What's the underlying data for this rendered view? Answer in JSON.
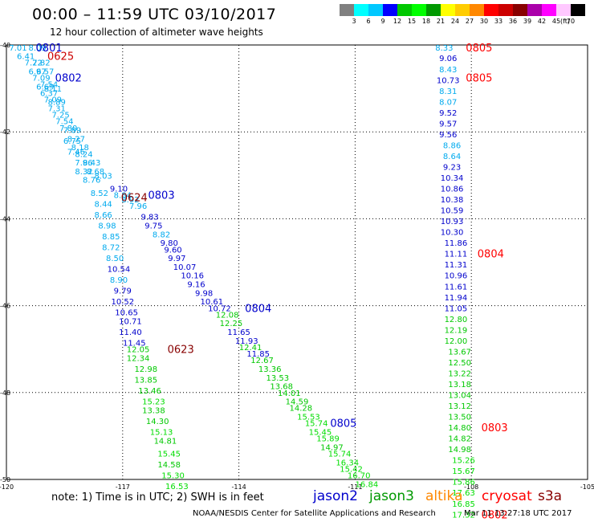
{
  "header": {
    "title": "00:00 – 11:59 UTC 03/10/2017",
    "subtitle": "12 hour collection of altimeter wave heights"
  },
  "colorbar": {
    "colors": [
      "#808080",
      "#00ffff",
      "#00c8ff",
      "#0000ff",
      "#00c800",
      "#00ff00",
      "#009900",
      "#ffff00",
      "#ffcc00",
      "#ff8800",
      "#ff0000",
      "#cc0000",
      "#880000",
      "#aa00aa",
      "#ff00ff",
      "#ffc8ff",
      "#000000"
    ],
    "labels": [
      "3",
      "6",
      "9",
      "12",
      "15",
      "18",
      "21",
      "24",
      "27",
      "30",
      "33",
      "36",
      "39",
      "42",
      "45",
      "70"
    ],
    "unit": "(ft)"
  },
  "chart_data": {
    "type": "scatter",
    "title": "00:00 – 11:59 UTC 03/10/2017",
    "subtitle": "12 hour collection of altimeter wave heights",
    "xlim": [
      -120,
      -105
    ],
    "ylim": [
      -50,
      -40
    ],
    "grid": true,
    "x_ticks": [
      "-120",
      "-117",
      "-114",
      "-111",
      "-108",
      "-105"
    ],
    "y_ticks": [
      "-40",
      "-42",
      "-44",
      "-46",
      "-48",
      "-50"
    ],
    "color_scale": [
      {
        "max": 3,
        "color": "#808080"
      },
      {
        "max": 6,
        "color": "#00ffff"
      },
      {
        "max": 9,
        "color": "#00aaee"
      },
      {
        "max": 12,
        "color": "#0000cc"
      },
      {
        "max": 15,
        "color": "#00c800"
      },
      {
        "max": 18,
        "color": "#00dd00"
      },
      {
        "max": 21,
        "color": "#009900"
      },
      {
        "max": 99,
        "color": "#ffcc00"
      }
    ],
    "points": [
      {
        "x": -119.7,
        "y": -40.06,
        "v": 7.01
      },
      {
        "x": -119.2,
        "y": -40.06,
        "v": 8.09
      },
      {
        "x": -119.5,
        "y": -40.25,
        "v": 6.41
      },
      {
        "x": -119.3,
        "y": -40.4,
        "v": 7.22
      },
      {
        "x": -119.1,
        "y": -40.4,
        "v": 7.82
      },
      {
        "x": -119.2,
        "y": -40.6,
        "v": 6.97
      },
      {
        "x": -119.0,
        "y": -40.6,
        "v": 6.57
      },
      {
        "x": -119.1,
        "y": -40.75,
        "v": 7.09
      },
      {
        "x": -118.9,
        "y": -40.9,
        "v": 7.54
      },
      {
        "x": -119.0,
        "y": -40.95,
        "v": 6.69
      },
      {
        "x": -118.8,
        "y": -41.0,
        "v": 8.11
      },
      {
        "x": -118.9,
        "y": -41.1,
        "v": 6.37
      },
      {
        "x": -118.8,
        "y": -41.25,
        "v": 7.09
      },
      {
        "x": -118.7,
        "y": -41.3,
        "v": 8.89
      },
      {
        "x": -118.7,
        "y": -41.45,
        "v": 7.31
      },
      {
        "x": -118.6,
        "y": -41.6,
        "v": 7.25
      },
      {
        "x": -118.5,
        "y": -41.75,
        "v": 7.54
      },
      {
        "x": -118.4,
        "y": -41.9,
        "v": 7.8
      },
      {
        "x": -118.3,
        "y": -41.95,
        "v": 7.89
      },
      {
        "x": -118.3,
        "y": -42.2,
        "v": 6.75
      },
      {
        "x": -118.2,
        "y": -42.15,
        "v": 8.27
      },
      {
        "x": -118.1,
        "y": -42.35,
        "v": 8.18
      },
      {
        "x": -118.2,
        "y": -42.45,
        "v": 7.46
      },
      {
        "x": -118.0,
        "y": -42.5,
        "v": 8.24
      },
      {
        "x": -118.0,
        "y": -42.7,
        "v": 7.96
      },
      {
        "x": -117.8,
        "y": -42.7,
        "v": 8.43
      },
      {
        "x": -118.0,
        "y": -42.9,
        "v": 8.32
      },
      {
        "x": -117.7,
        "y": -42.9,
        "v": 8.68
      },
      {
        "x": -117.8,
        "y": -43.1,
        "v": 8.76
      },
      {
        "x": -117.5,
        "y": -43.0,
        "v": 8.03
      },
      {
        "x": -117.1,
        "y": -43.3,
        "v": 9.1
      },
      {
        "x": -117.6,
        "y": -43.4,
        "v": 8.52
      },
      {
        "x": -117.0,
        "y": -43.45,
        "v": 8.84
      },
      {
        "x": -116.8,
        "y": -43.55,
        "v": 8.92
      },
      {
        "x": -117.5,
        "y": -43.65,
        "v": 8.44
      },
      {
        "x": -116.6,
        "y": -43.7,
        "v": 7.96
      },
      {
        "x": -117.5,
        "y": -43.9,
        "v": 8.66
      },
      {
        "x": -116.3,
        "y": -43.95,
        "v": 9.83
      },
      {
        "x": -117.4,
        "y": -44.15,
        "v": 8.98
      },
      {
        "x": -116.2,
        "y": -44.15,
        "v": 9.75
      },
      {
        "x": -116.0,
        "y": -44.35,
        "v": 8.82
      },
      {
        "x": -117.3,
        "y": -44.4,
        "v": 8.85
      },
      {
        "x": -115.8,
        "y": -44.55,
        "v": 9.8
      },
      {
        "x": -117.3,
        "y": -44.65,
        "v": 8.72
      },
      {
        "x": -115.7,
        "y": -44.7,
        "v": 9.6
      },
      {
        "x": -117.2,
        "y": -44.9,
        "v": 8.5
      },
      {
        "x": -115.6,
        "y": -44.9,
        "v": 9.97
      },
      {
        "x": -115.4,
        "y": -45.1,
        "v": 10.07
      },
      {
        "x": -117.1,
        "y": -45.15,
        "v": 10.54
      },
      {
        "x": -115.2,
        "y": -45.3,
        "v": 10.16
      },
      {
        "x": -117.1,
        "y": -45.4,
        "v": 8.9
      },
      {
        "x": -115.1,
        "y": -45.5,
        "v": 9.16
      },
      {
        "x": -117.0,
        "y": -45.65,
        "v": 9.79
      },
      {
        "x": -114.9,
        "y": -45.7,
        "v": 9.98
      },
      {
        "x": -117.0,
        "y": -45.9,
        "v": 10.52
      },
      {
        "x": -114.7,
        "y": -45.9,
        "v": 10.61
      },
      {
        "x": -114.5,
        "y": -46.05,
        "v": 10.72
      },
      {
        "x": -116.9,
        "y": -46.15,
        "v": 10.65
      },
      {
        "x": -114.3,
        "y": -46.2,
        "v": 12.08
      },
      {
        "x": -116.8,
        "y": -46.35,
        "v": 10.71
      },
      {
        "x": -114.2,
        "y": -46.4,
        "v": 12.25
      },
      {
        "x": -116.8,
        "y": -46.6,
        "v": 11.4
      },
      {
        "x": -114.0,
        "y": -46.6,
        "v": 11.65
      },
      {
        "x": -113.8,
        "y": -46.8,
        "v": 11.93
      },
      {
        "x": -116.7,
        "y": -46.85,
        "v": 11.45
      },
      {
        "x": -113.7,
        "y": -46.95,
        "v": 12.41
      },
      {
        "x": -116.6,
        "y": -47.0,
        "v": 12.05
      },
      {
        "x": -113.5,
        "y": -47.1,
        "v": 11.85
      },
      {
        "x": -116.6,
        "y": -47.2,
        "v": 12.34
      },
      {
        "x": -113.4,
        "y": -47.25,
        "v": 12.67
      },
      {
        "x": -113.2,
        "y": -47.45,
        "v": 13.36
      },
      {
        "x": -116.4,
        "y": -47.45,
        "v": 12.98
      },
      {
        "x": -113.0,
        "y": -47.65,
        "v": 13.53
      },
      {
        "x": -116.4,
        "y": -47.7,
        "v": 13.85
      },
      {
        "x": -112.9,
        "y": -47.85,
        "v": 13.68
      },
      {
        "x": -116.3,
        "y": -47.95,
        "v": 13.46
      },
      {
        "x": -112.7,
        "y": -48.0,
        "v": 14.01
      },
      {
        "x": -116.2,
        "y": -48.2,
        "v": 15.23
      },
      {
        "x": -112.5,
        "y": -48.2,
        "v": 14.59
      },
      {
        "x": -112.4,
        "y": -48.35,
        "v": 14.28
      },
      {
        "x": -116.2,
        "y": -48.4,
        "v": 13.38
      },
      {
        "x": -112.2,
        "y": -48.55,
        "v": 15.53
      },
      {
        "x": -116.1,
        "y": -48.65,
        "v": 14.3
      },
      {
        "x": -112.0,
        "y": -48.7,
        "v": 15.74
      },
      {
        "x": -111.9,
        "y": -48.9,
        "v": 15.45
      },
      {
        "x": -116.0,
        "y": -48.9,
        "v": 15.13
      },
      {
        "x": -111.7,
        "y": -49.05,
        "v": 15.89
      },
      {
        "x": -115.9,
        "y": -49.1,
        "v": 14.81
      },
      {
        "x": -111.6,
        "y": -49.25,
        "v": 14.97
      },
      {
        "x": -115.8,
        "y": -49.4,
        "v": 15.45
      },
      {
        "x": -111.4,
        "y": -49.4,
        "v": 15.74
      },
      {
        "x": -111.2,
        "y": -49.6,
        "v": 16.34
      },
      {
        "x": -115.8,
        "y": -49.65,
        "v": 14.58
      },
      {
        "x": -111.1,
        "y": -49.75,
        "v": 15.42
      },
      {
        "x": -115.7,
        "y": -49.9,
        "v": 15.3
      },
      {
        "x": -110.9,
        "y": -49.9,
        "v": 16.7
      },
      {
        "x": -110.7,
        "y": -50.1,
        "v": 16.84
      },
      {
        "x": -115.6,
        "y": -50.15,
        "v": 16.53
      },
      {
        "x": -108.7,
        "y": -40.06,
        "v": 8.33
      },
      {
        "x": -108.6,
        "y": -40.3,
        "v": 9.06
      },
      {
        "x": -108.6,
        "y": -40.55,
        "v": 8.43
      },
      {
        "x": -108.6,
        "y": -40.8,
        "v": 10.73
      },
      {
        "x": -108.6,
        "y": -41.05,
        "v": 8.31
      },
      {
        "x": -108.6,
        "y": -41.3,
        "v": 8.07
      },
      {
        "x": -108.6,
        "y": -41.55,
        "v": 9.52
      },
      {
        "x": -108.6,
        "y": -41.8,
        "v": 9.57
      },
      {
        "x": -108.6,
        "y": -42.05,
        "v": 9.56
      },
      {
        "x": -108.5,
        "y": -42.3,
        "v": 8.86
      },
      {
        "x": -108.5,
        "y": -42.55,
        "v": 8.64
      },
      {
        "x": -108.5,
        "y": -42.8,
        "v": 9.23
      },
      {
        "x": -108.5,
        "y": -43.05,
        "v": 10.34
      },
      {
        "x": -108.5,
        "y": -43.3,
        "v": 10.86
      },
      {
        "x": -108.5,
        "y": -43.55,
        "v": 10.38
      },
      {
        "x": -108.5,
        "y": -43.8,
        "v": 10.59
      },
      {
        "x": -108.5,
        "y": -44.05,
        "v": 10.93
      },
      {
        "x": -108.5,
        "y": -44.3,
        "v": 10.3
      },
      {
        "x": -108.4,
        "y": -44.55,
        "v": 11.86
      },
      {
        "x": -108.4,
        "y": -44.8,
        "v": 11.11
      },
      {
        "x": -108.4,
        "y": -45.05,
        "v": 11.31
      },
      {
        "x": -108.4,
        "y": -45.3,
        "v": 10.96
      },
      {
        "x": -108.4,
        "y": -45.55,
        "v": 11.61
      },
      {
        "x": -108.4,
        "y": -45.8,
        "v": 11.94
      },
      {
        "x": -108.4,
        "y": -46.05,
        "v": 11.05
      },
      {
        "x": -108.4,
        "y": -46.3,
        "v": 12.8
      },
      {
        "x": -108.4,
        "y": -46.55,
        "v": 12.19
      },
      {
        "x": -108.4,
        "y": -46.8,
        "v": 12.0
      },
      {
        "x": -108.3,
        "y": -47.05,
        "v": 13.67
      },
      {
        "x": -108.3,
        "y": -47.3,
        "v": 12.5
      },
      {
        "x": -108.3,
        "y": -47.55,
        "v": 13.22
      },
      {
        "x": -108.3,
        "y": -47.8,
        "v": 13.18
      },
      {
        "x": -108.3,
        "y": -48.05,
        "v": 13.04
      },
      {
        "x": -108.3,
        "y": -48.3,
        "v": 13.12
      },
      {
        "x": -108.3,
        "y": -48.55,
        "v": 13.5
      },
      {
        "x": -108.3,
        "y": -48.8,
        "v": 14.8
      },
      {
        "x": -108.3,
        "y": -49.05,
        "v": 14.82
      },
      {
        "x": -108.3,
        "y": -49.3,
        "v": 14.98
      },
      {
        "x": -108.2,
        "y": -49.55,
        "v": 15.26
      },
      {
        "x": -108.2,
        "y": -49.8,
        "v": 15.67
      },
      {
        "x": -108.2,
        "y": -50.05,
        "v": 15.86
      },
      {
        "x": -108.2,
        "y": -50.3,
        "v": 17.63
      },
      {
        "x": -108.2,
        "y": -50.55,
        "v": 16.85
      },
      {
        "x": -108.2,
        "y": -50.8,
        "v": 17.32
      }
    ],
    "time_labels": [
      {
        "x": -118.9,
        "y": -40.06,
        "text": "0801",
        "color": "#0000cc"
      },
      {
        "x": -118.6,
        "y": -40.25,
        "text": "0625",
        "color": "#cc0000"
      },
      {
        "x": -118.4,
        "y": -40.75,
        "text": "0802",
        "color": "#0000cc"
      },
      {
        "x": -116.7,
        "y": -43.5,
        "text": "0624",
        "color": "#880000"
      },
      {
        "x": -116.0,
        "y": -43.45,
        "text": "0803",
        "color": "#0000cc"
      },
      {
        "x": -113.5,
        "y": -46.05,
        "text": "0804",
        "color": "#0000cc"
      },
      {
        "x": -115.5,
        "y": -47.0,
        "text": "0623",
        "color": "#880000"
      },
      {
        "x": -111.3,
        "y": -48.7,
        "text": "0805",
        "color": "#0000cc"
      },
      {
        "x": -107.8,
        "y": -40.06,
        "text": "0805",
        "color": "#ff0000"
      },
      {
        "x": -107.8,
        "y": -40.75,
        "text": "0805",
        "color": "#ff0000"
      },
      {
        "x": -107.5,
        "y": -44.8,
        "text": "0804",
        "color": "#ff0000"
      },
      {
        "x": -107.4,
        "y": -48.8,
        "text": "0803",
        "color": "#ff0000"
      },
      {
        "x": -107.4,
        "y": -50.8,
        "text": "0802",
        "color": "#ff0000"
      }
    ]
  },
  "footer": {
    "note": "note: 1) Time is in UTC; 2) SWH is in feet",
    "satellites": [
      {
        "name": "jason2",
        "color": "#0000cc"
      },
      {
        "name": "jason3",
        "color": "#009900"
      },
      {
        "name": "altika",
        "color": "#ff8800"
      },
      {
        "name": "cryosat",
        "color": "#ff0000"
      },
      {
        "name": "s3a",
        "color": "#880000"
      }
    ],
    "credit": "NOAA/NESDIS Center for Satellite Applications and Research",
    "timestamp": "Mar 11 13:27:18 UTC 2017"
  }
}
